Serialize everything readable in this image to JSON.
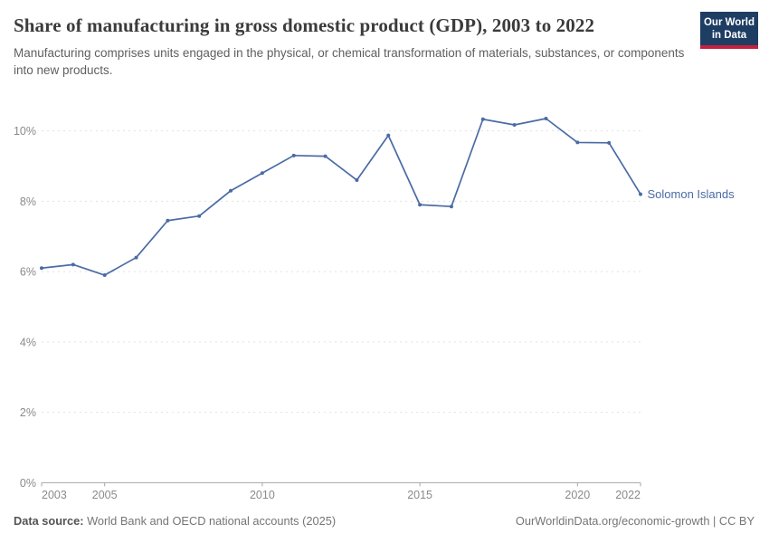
{
  "header": {
    "title": "Share of manufacturing in gross domestic product (GDP), 2003 to 2022",
    "subtitle": "Manufacturing comprises units engaged in the physical, or chemical transformation of materials, substances, or components into new products.",
    "logo": {
      "line1": "Our World",
      "line2": "in Data"
    }
  },
  "chart_data": {
    "type": "line",
    "title": "Share of manufacturing in gross domestic product (GDP), 2003 to 2022",
    "x": [
      2003,
      2004,
      2005,
      2006,
      2007,
      2008,
      2009,
      2010,
      2011,
      2012,
      2013,
      2014,
      2015,
      2016,
      2017,
      2018,
      2019,
      2020,
      2021,
      2022
    ],
    "series": [
      {
        "name": "Solomon Islands",
        "values": [
          6.1,
          6.2,
          5.9,
          6.4,
          7.45,
          7.58,
          8.3,
          8.8,
          9.3,
          9.28,
          8.6,
          9.87,
          7.9,
          7.85,
          10.33,
          10.17,
          10.35,
          9.67,
          9.66,
          8.2
        ]
      }
    ],
    "xlabel": "",
    "ylabel": "",
    "ylim": [
      0,
      10.9
    ],
    "yticks": [
      0,
      2,
      4,
      6,
      8,
      10
    ],
    "ytick_suffix": "%",
    "xticks": [
      2003,
      2005,
      2010,
      2015,
      2020,
      2022
    ],
    "grid": "horizontal-dashed",
    "legend_position": "end-of-line-label",
    "line_color": "#4a6ba5"
  },
  "footer": {
    "source_label": "Data source:",
    "source_text": " World Bank and OECD national accounts (2025)",
    "link_text": "OurWorldinData.org/economic-growth | CC BY"
  },
  "colors": {
    "accent_line": "#4a6ba5",
    "logo_navy": "#1d3d63",
    "logo_red": "#c5203e",
    "gridline": "#e1e1e1",
    "axis": "#a6a6a6",
    "tick_text": "#8a8a8a"
  }
}
